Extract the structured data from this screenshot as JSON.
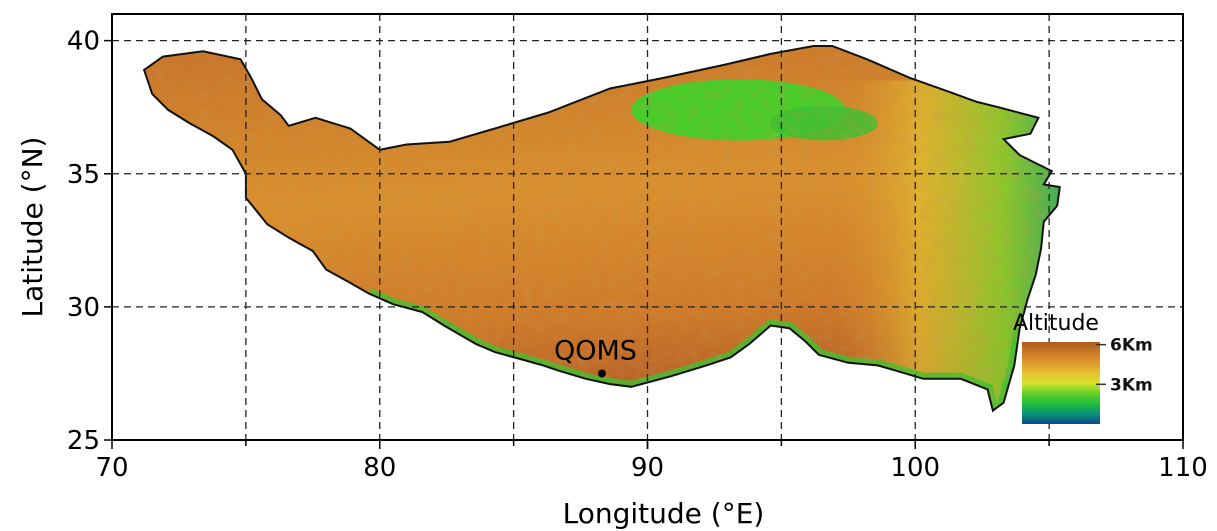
{
  "map": {
    "x_axis": {
      "label": "Longitude (°E)",
      "range": [
        70,
        110
      ],
      "ticks": [
        70,
        80,
        90,
        100,
        110
      ],
      "gridlines": [
        75,
        80,
        85,
        90,
        95,
        100,
        105
      ]
    },
    "y_axis": {
      "label": "Latitude (°N)",
      "range": [
        25,
        41
      ],
      "ticks": [
        25,
        30,
        35,
        40
      ],
      "gridlines": [
        30,
        35,
        40
      ]
    },
    "grid": true,
    "station": {
      "name": "QOMS",
      "lon": 88.3,
      "lat": 27.5
    },
    "legend": {
      "title": "Altitude",
      "position": "bottom-right",
      "ticks": [
        {
          "label": "6Km",
          "value": 6
        },
        {
          "label": "3Km",
          "value": 3
        }
      ],
      "colors": [
        "#b05a1e",
        "#d98a2c",
        "#e6c12f",
        "#d8e32a",
        "#6ad12a",
        "#1fbf3a",
        "#0b8f7a",
        "#0b4a8a"
      ]
    },
    "region_colors": {
      "plateau": "#d9902e",
      "high": "#b8622a",
      "lowland": "#42c42e",
      "basin": "#49cc2a"
    }
  }
}
